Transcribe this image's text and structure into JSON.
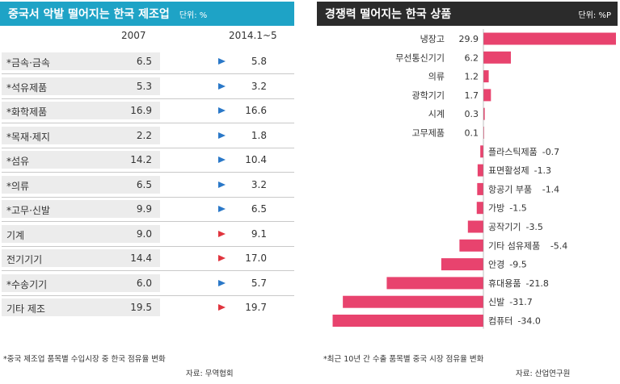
{
  "left": {
    "title": "중국서 악발 떨어지는 한국 제조업",
    "unit": "단위: %",
    "col_2007": "2007",
    "col_2014": "2014.1~5",
    "rows": [
      {
        "name": "*금속·금속",
        "v2007": "6.5",
        "v2014": "5.8",
        "trend": "down"
      },
      {
        "name": "*석유제품",
        "v2007": "5.3",
        "v2014": "3.2",
        "trend": "down"
      },
      {
        "name": "*화학제품",
        "v2007": "16.9",
        "v2014": "16.6",
        "trend": "down"
      },
      {
        "name": "*목재·제지",
        "v2007": "2.2",
        "v2014": "1.8",
        "trend": "down"
      },
      {
        "name": "*섬유",
        "v2007": "14.2",
        "v2014": "10.4",
        "trend": "down"
      },
      {
        "name": "*의류",
        "v2007": "6.5",
        "v2014": "3.2",
        "trend": "down"
      },
      {
        "name": "*고무·신발",
        "v2007": "9.9",
        "v2014": "6.5",
        "trend": "down"
      },
      {
        "name": "기계",
        "v2007": "9.0",
        "v2014": "9.1",
        "trend": "up"
      },
      {
        "name": "전기기기",
        "v2007": "14.4",
        "v2014": "17.0",
        "trend": "up"
      },
      {
        "name": "*수송기기",
        "v2007": "6.0",
        "v2014": "5.7",
        "trend": "down"
      },
      {
        "name": "기타 제조",
        "v2007": "19.5",
        "v2014": "19.7",
        "trend": "up"
      }
    ],
    "footnote": "*중국 제조업 품목별 수입시장 중 한국 점유율 변화",
    "source": "자료: 무역협회"
  },
  "right": {
    "title": "경쟁력 떨어지는 한국 상품",
    "unit": "단위: %P",
    "footnote": "*최근 10년 간 수출 품목별 중국 시장 점유율 변화",
    "source": "자료: 산업연구원"
  },
  "colors": {
    "left_header": "#1ea3c6",
    "right_header": "#2b2b2b",
    "bar": "#e8436e",
    "arrow_down": "#2a78c8",
    "arrow_up": "#e0343e"
  },
  "chart_data": {
    "type": "bar",
    "orientation": "horizontal",
    "categories": [
      "냉장고",
      "무선통신기기",
      "의류",
      "광학기기",
      "시계",
      "고무제품",
      "플라스틱제품",
      "표면활성제",
      "항공기 부품",
      "가방",
      "공작기기",
      "기타 섬유제품",
      "안경",
      "휴대용품",
      "신발",
      "컴퓨터"
    ],
    "values": [
      29.9,
      6.2,
      1.2,
      1.7,
      0.3,
      0.1,
      -0.7,
      -1.3,
      -1.4,
      -1.5,
      -3.5,
      -5.4,
      -9.5,
      -21.8,
      -31.7,
      -34.0
    ],
    "labels": [
      "29.9",
      "6.2",
      "1.2",
      "1.7",
      "0.3",
      "0.1",
      "-0.7",
      "-1.3",
      "-1.4",
      "-1.5",
      "-3.5",
      "-5.4",
      "-9.5",
      "-21.8",
      "-31.7",
      "-34.0"
    ],
    "title": "경쟁력 떨어지는 한국 상품",
    "xlim": [
      -34.0,
      29.9
    ]
  }
}
